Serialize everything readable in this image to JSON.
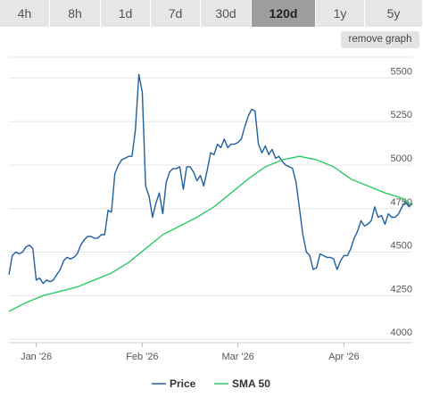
{
  "tabs": [
    {
      "label": "4h",
      "active": false
    },
    {
      "label": "8h",
      "active": false
    },
    {
      "label": "1d",
      "active": false
    },
    {
      "label": "7d",
      "active": false
    },
    {
      "label": "30d",
      "active": false
    },
    {
      "label": "120d",
      "active": true
    },
    {
      "label": "1y",
      "active": false
    },
    {
      "label": "5y",
      "active": false
    }
  ],
  "remove_graph_label": "remove graph",
  "colors": {
    "price": "#1f5f9e",
    "sma": "#2ec866",
    "grid": "#e6e6e6",
    "axis_text": "#555555",
    "active_tab": "#9e9e9e"
  },
  "chart_data": {
    "type": "line",
    "x_tick_labels": [
      "Jan '26",
      "Feb '26",
      "Mar '26",
      "Apr '26"
    ],
    "x_ticks": [
      8,
      39,
      67,
      98
    ],
    "y_ticks": [
      4000,
      4250,
      4500,
      4750,
      5000,
      5250,
      5500
    ],
    "ylim": [
      3980,
      5620
    ],
    "xlim": [
      0,
      118
    ],
    "grid": true,
    "legend_position": "bottom",
    "series": [
      {
        "name": "Price",
        "color": "#1f5f9e",
        "x": [
          0,
          1,
          2,
          3,
          4,
          5,
          6,
          7,
          8,
          9,
          10,
          11,
          12,
          13,
          14,
          15,
          16,
          17,
          18,
          19,
          20,
          21,
          22,
          23,
          24,
          25,
          26,
          27,
          28,
          29,
          30,
          31,
          32,
          33,
          34,
          35,
          36,
          37,
          38,
          39,
          40,
          41,
          42,
          43,
          44,
          45,
          46,
          47,
          48,
          49,
          50,
          51,
          52,
          53,
          54,
          55,
          56,
          57,
          58,
          59,
          60,
          61,
          62,
          63,
          64,
          65,
          66,
          67,
          68,
          69,
          70,
          71,
          72,
          73,
          74,
          75,
          76,
          77,
          78,
          79,
          80,
          81,
          82,
          83,
          84,
          85,
          86,
          87,
          88,
          89,
          90,
          91,
          92,
          93,
          94,
          95,
          96,
          97,
          98,
          99,
          100,
          101,
          102,
          103,
          104,
          105,
          106,
          107,
          108,
          109,
          110,
          111,
          112,
          113,
          114,
          115,
          116,
          117,
          118
        ],
        "values": [
          4370,
          4480,
          4500,
          4490,
          4500,
          4530,
          4540,
          4520,
          4340,
          4350,
          4320,
          4340,
          4330,
          4340,
          4370,
          4400,
          4450,
          4470,
          4460,
          4470,
          4490,
          4540,
          4570,
          4590,
          4590,
          4580,
          4580,
          4600,
          4600,
          4740,
          4730,
          4950,
          5000,
          5030,
          5040,
          5050,
          5050,
          5200,
          5520,
          5420,
          4880,
          4820,
          4700,
          4780,
          4840,
          4720,
          4900,
          4960,
          4980,
          4980,
          4990,
          4860,
          4990,
          4990,
          4960,
          4910,
          4940,
          4880,
          4970,
          5070,
          5060,
          5120,
          5100,
          5150,
          5100,
          5120,
          5120,
          5130,
          5150,
          5220,
          5280,
          5320,
          5310,
          5120,
          5070,
          5110,
          5060,
          5090,
          5040,
          5050,
          5020,
          5000,
          4990,
          4980,
          4900,
          4750,
          4600,
          4500,
          4480,
          4400,
          4410,
          4490,
          4480,
          4470,
          4470,
          4460,
          4400,
          4450,
          4480,
          4480,
          4520,
          4580,
          4620,
          4680,
          4650,
          4660,
          4680,
          4760,
          4700,
          4710,
          4660,
          4720,
          4700,
          4700,
          4720,
          4760,
          4790,
          4760,
          4780
        ],
        "x_override": [
          0,
          1,
          2,
          3,
          4,
          5,
          6,
          7,
          8,
          9,
          10,
          11,
          12,
          13,
          14,
          15,
          16,
          17,
          18,
          19,
          20,
          21,
          22,
          23,
          24,
          25,
          26,
          27,
          28,
          29,
          30,
          31,
          32,
          33,
          34,
          35,
          36,
          37,
          38,
          39,
          40,
          41,
          42,
          43,
          44,
          45,
          46,
          47,
          48,
          49,
          50,
          51,
          52,
          53,
          54,
          55,
          56,
          57,
          58,
          59,
          60,
          61,
          62,
          63,
          64,
          65,
          66,
          67,
          68,
          69,
          70,
          71,
          72,
          73,
          74,
          75,
          76,
          77,
          78,
          79,
          80,
          81,
          82,
          83,
          84,
          85,
          86,
          87,
          88,
          89,
          90,
          91,
          92,
          93,
          94,
          95,
          96,
          97,
          98,
          99,
          100,
          101,
          102,
          103,
          104,
          105,
          106,
          107,
          108,
          109,
          110,
          111,
          112,
          113,
          114,
          115,
          116,
          117,
          118
        ]
      },
      {
        "name": "SMA 50",
        "color": "#2ec866",
        "x": [
          0,
          5,
          10,
          15,
          20,
          25,
          30,
          35,
          40,
          45,
          50,
          55,
          60,
          65,
          70,
          75,
          80,
          85,
          90,
          95,
          100,
          105,
          110,
          115,
          118
        ],
        "values": [
          4160,
          4210,
          4250,
          4275,
          4300,
          4340,
          4380,
          4440,
          4520,
          4600,
          4650,
          4700,
          4760,
          4840,
          4920,
          4990,
          5030,
          5050,
          5030,
          4990,
          4920,
          4880,
          4840,
          4810,
          4770
        ]
      }
    ]
  }
}
